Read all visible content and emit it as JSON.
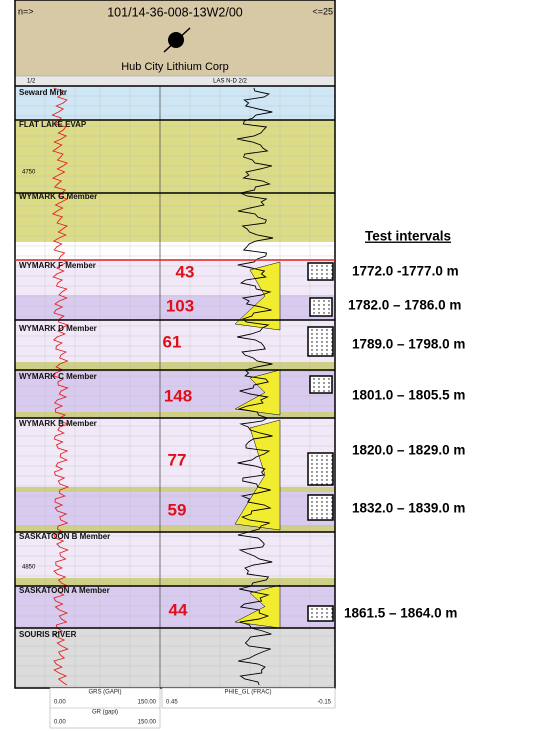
{
  "header": {
    "left_marker": "n=>",
    "well_id": "101/14-36-008-13W2/00",
    "right_marker": "<=25",
    "company": "Hub City Lithium Corp",
    "track_left": "1/2",
    "track_right": "LAS N-D 2/2"
  },
  "formations": [
    "Seward Mrkr",
    "FLAT LAKE EVAP",
    "WYMARK G Member",
    "WYMARK F Member",
    "WYMARK D Member",
    "WYMARK C Member",
    "WYMARK B Member",
    "SASKATOON B Member",
    "SASKATOON A Member",
    "SOURIS RIVER"
  ],
  "zone_values": [
    43,
    103,
    61,
    148,
    77,
    59,
    44
  ],
  "depth_labels": [
    "4750",
    "4850"
  ],
  "test_intervals": {
    "title": "Test intervals",
    "items": [
      "1772.0 -1777.0 m",
      "1782.0 – 1786.0 m",
      "1789.0 – 1798.0 m",
      "1801.0 – 1805.5 m",
      "1820.0 – 1829.0 m",
      "1832.0 – 1839.0 m",
      "1861.5 – 1864.0 m"
    ]
  },
  "footer": {
    "grs": {
      "name": "GRS (GAPI)",
      "min": "0.00",
      "max": "150.00"
    },
    "gr": {
      "name": "GR (gapi)",
      "min": "0.00",
      "max": "150.00"
    },
    "phie": {
      "name": "PHIE_GL (FRAC)",
      "min": "0.45",
      "max": "-0.15"
    }
  }
}
